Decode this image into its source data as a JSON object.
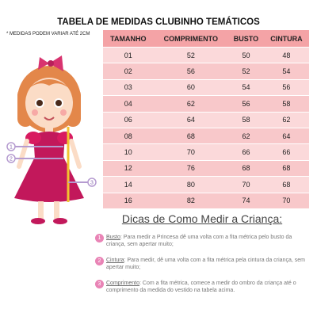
{
  "header": {
    "title": "TABELA DE MEDIDAS CLUBINHO TEMÁTICOS",
    "note": "* MEDIDAS PODEM VARIAR ATÉ 2CM"
  },
  "table": {
    "columns": [
      "TAMANHO",
      "COMPRIMENTO",
      "BUSTO",
      "CINTURA"
    ],
    "rows": [
      [
        "01",
        52,
        50,
        48
      ],
      [
        "02",
        56,
        52,
        54
      ],
      [
        "03",
        60,
        54,
        56
      ],
      [
        "04",
        62,
        56,
        58
      ],
      [
        "06",
        64,
        58,
        62
      ],
      [
        "08",
        68,
        62,
        64
      ],
      [
        "10",
        70,
        66,
        66
      ],
      [
        "12",
        76,
        68,
        68
      ],
      [
        "14",
        80,
        70,
        68
      ],
      [
        "16",
        82,
        74,
        70
      ]
    ]
  },
  "figure": {
    "markers": [
      "1",
      "2",
      "3"
    ]
  },
  "tips": {
    "title": "Dicas de Como Medir a Criança:",
    "items": [
      {
        "number": "1",
        "label": "Busto",
        "text": ": Para medir a Princesa dê uma volta com a fita métrica pelo busto da criança, sem apertar muito;"
      },
      {
        "number": "2",
        "label": "Cintura",
        "text": ": Para medir, dê uma volta com a fita métrica pela cintura da criança, sem apertar muito;"
      },
      {
        "number": "3",
        "label": "Comprimento",
        "text": ": Com a fita métrica, comece a medir do ombro da criança até o comprimento da medida do vestido na tabela acima."
      }
    ]
  }
}
